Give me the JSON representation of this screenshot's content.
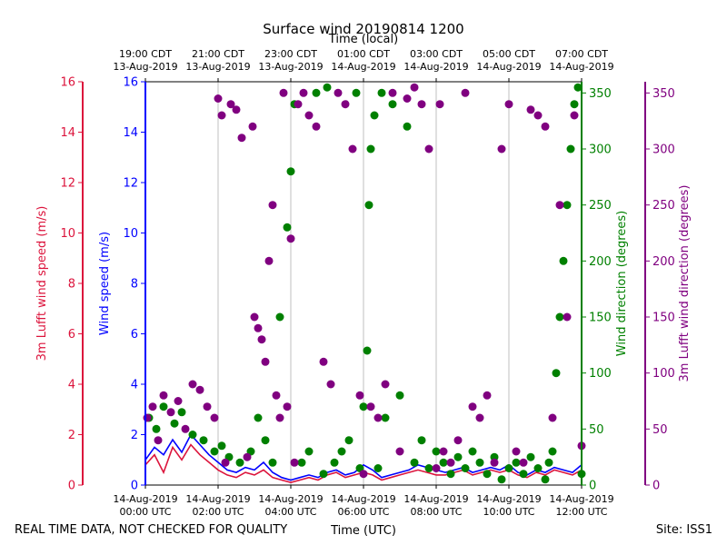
{
  "chart_data": {
    "type": "scatter",
    "title": "Surface wind 20190814 1200",
    "top_axis_label": "Time (local)",
    "xlabel": "Time (UTC)",
    "footer_left": "REAL TIME DATA, NOT CHECKED FOR QUALITY",
    "footer_right": "Site: ISS1",
    "x_range_hours_utc": [
      0,
      12
    ],
    "bottom_ticks": [
      {
        "h": 0,
        "line1": "14-Aug-2019",
        "line2": "00:00 UTC"
      },
      {
        "h": 2,
        "line1": "14-Aug-2019",
        "line2": "02:00 UTC"
      },
      {
        "h": 4,
        "line1": "14-Aug-2019",
        "line2": "04:00 UTC"
      },
      {
        "h": 6,
        "line1": "14-Aug-2019",
        "line2": "06:00 UTC"
      },
      {
        "h": 8,
        "line1": "14-Aug-2019",
        "line2": "08:00 UTC"
      },
      {
        "h": 10,
        "line1": "14-Aug-2019",
        "line2": "10:00 UTC"
      },
      {
        "h": 12,
        "line1": "14-Aug-2019",
        "line2": "12:00 UTC"
      }
    ],
    "top_ticks": [
      {
        "h": 0,
        "line1": "19:00 CDT",
        "line2": "13-Aug-2019"
      },
      {
        "h": 2,
        "line1": "21:00 CDT",
        "line2": "13-Aug-2019"
      },
      {
        "h": 4,
        "line1": "23:00 CDT",
        "line2": "13-Aug-2019"
      },
      {
        "h": 6,
        "line1": "01:00 CDT",
        "line2": "14-Aug-2019"
      },
      {
        "h": 8,
        "line1": "03:00 CDT",
        "line2": "14-Aug-2019"
      },
      {
        "h": 10,
        "line1": "05:00 CDT",
        "line2": "14-Aug-2019"
      },
      {
        "h": 12,
        "line1": "07:00 CDT",
        "line2": "14-Aug-2019"
      }
    ],
    "axes": [
      {
        "name": "lufft-speed",
        "label": "3m Lufft wind speed (m/s)",
        "color": "#dc143c",
        "range": [
          0,
          16
        ],
        "ticks": [
          0,
          2,
          4,
          6,
          8,
          10,
          12,
          14,
          16
        ]
      },
      {
        "name": "wind-speed",
        "label": "Wind speed (m/s)",
        "color": "#0000ff",
        "range": [
          0,
          16
        ],
        "ticks": [
          0,
          2,
          4,
          6,
          8,
          10,
          12,
          14,
          16
        ]
      },
      {
        "name": "wind-direction",
        "label": "Wind direction (degrees)",
        "color": "#008000",
        "range": [
          0,
          360
        ],
        "ticks": [
          0,
          50,
          100,
          150,
          200,
          250,
          300,
          350
        ]
      },
      {
        "name": "lufft-direction",
        "label": "3m Lufft wind direction (degrees)",
        "color": "#800080",
        "range": [
          0,
          360
        ],
        "ticks": [
          0,
          50,
          100,
          150,
          200,
          250,
          300,
          350
        ]
      }
    ],
    "series": [
      {
        "name": "Wind speed",
        "kind": "line",
        "axis": "wind-speed",
        "color": "#0000ff",
        "x": [
          0,
          0.25,
          0.5,
          0.75,
          1,
          1.25,
          1.5,
          1.75,
          2,
          2.25,
          2.5,
          2.75,
          3,
          3.25,
          3.5,
          3.75,
          4,
          4.25,
          4.5,
          4.75,
          5,
          5.25,
          5.5,
          5.75,
          6,
          6.25,
          6.5,
          6.75,
          7,
          7.25,
          7.5,
          7.75,
          8,
          8.25,
          8.5,
          8.75,
          9,
          9.25,
          9.5,
          9.75,
          10,
          10.25,
          10.5,
          10.75,
          11,
          11.25,
          11.5,
          11.75,
          12
        ],
        "y": [
          1.0,
          1.5,
          1.2,
          1.8,
          1.3,
          2.0,
          1.6,
          1.2,
          0.9,
          0.6,
          0.5,
          0.7,
          0.6,
          0.9,
          0.5,
          0.3,
          0.2,
          0.3,
          0.4,
          0.3,
          0.5,
          0.6,
          0.4,
          0.5,
          0.8,
          0.6,
          0.3,
          0.4,
          0.5,
          0.6,
          0.8,
          0.7,
          0.6,
          0.5,
          0.6,
          0.7,
          0.5,
          0.6,
          0.7,
          0.6,
          0.8,
          0.5,
          0.4,
          0.6,
          0.5,
          0.7,
          0.6,
          0.5,
          0.8
        ]
      },
      {
        "name": "3m Lufft wind speed",
        "kind": "line",
        "axis": "lufft-speed",
        "color": "#dc143c",
        "x": [
          0,
          0.25,
          0.5,
          0.75,
          1,
          1.25,
          1.5,
          1.75,
          2,
          2.25,
          2.5,
          2.75,
          3,
          3.25,
          3.5,
          3.75,
          4,
          4.25,
          4.5,
          4.75,
          5,
          5.25,
          5.5,
          5.75,
          6,
          6.25,
          6.5,
          6.75,
          7,
          7.25,
          7.5,
          7.75,
          8,
          8.25,
          8.5,
          8.75,
          9,
          9.25,
          9.5,
          9.75,
          10,
          10.25,
          10.5,
          10.75,
          11,
          11.25,
          11.5,
          11.75,
          12
        ],
        "y": [
          0.8,
          1.2,
          0.5,
          1.5,
          1.0,
          1.6,
          1.2,
          0.9,
          0.6,
          0.4,
          0.3,
          0.5,
          0.4,
          0.6,
          0.3,
          0.2,
          0.1,
          0.2,
          0.3,
          0.2,
          0.4,
          0.5,
          0.3,
          0.4,
          0.5,
          0.4,
          0.2,
          0.3,
          0.4,
          0.5,
          0.6,
          0.5,
          0.4,
          0.4,
          0.5,
          0.6,
          0.4,
          0.5,
          0.6,
          0.5,
          0.6,
          0.4,
          0.3,
          0.5,
          0.4,
          0.6,
          0.5,
          0.4,
          0.6
        ]
      },
      {
        "name": "Wind direction",
        "kind": "scatter",
        "axis": "wind-direction",
        "color": "#008000",
        "x": [
          0.1,
          0.3,
          0.5,
          0.8,
          1.0,
          1.3,
          1.6,
          1.9,
          2.1,
          2.3,
          2.6,
          2.9,
          3.1,
          3.3,
          3.5,
          3.7,
          3.9,
          4.0,
          4.1,
          4.3,
          4.5,
          4.7,
          4.9,
          5.0,
          5.2,
          5.4,
          5.6,
          5.8,
          5.9,
          6.0,
          6.1,
          6.15,
          6.2,
          6.3,
          6.4,
          6.5,
          6.6,
          6.8,
          7.0,
          7.2,
          7.4,
          7.6,
          7.8,
          8.0,
          8.2,
          8.4,
          8.6,
          8.8,
          9.0,
          9.2,
          9.4,
          9.6,
          9.8,
          10.0,
          10.2,
          10.4,
          10.6,
          10.8,
          11.0,
          11.1,
          11.2,
          11.3,
          11.4,
          11.5,
          11.6,
          11.7,
          11.8,
          11.9,
          12.0
        ],
        "y": [
          60,
          50,
          70,
          55,
          65,
          45,
          40,
          30,
          35,
          25,
          20,
          30,
          60,
          40,
          20,
          150,
          230,
          280,
          340,
          20,
          30,
          350,
          10,
          355,
          20,
          30,
          40,
          350,
          15,
          70,
          120,
          250,
          300,
          330,
          15,
          350,
          60,
          340,
          80,
          320,
          20,
          40,
          15,
          30,
          20,
          10,
          25,
          15,
          30,
          20,
          10,
          25,
          5,
          15,
          20,
          10,
          25,
          15,
          5,
          20,
          30,
          100,
          150,
          200,
          250,
          300,
          340,
          355,
          10
        ]
      },
      {
        "name": "3m Lufft wind direction",
        "kind": "scatter",
        "axis": "lufft-direction",
        "color": "#800080",
        "x": [
          0.05,
          0.2,
          0.35,
          0.5,
          0.7,
          0.9,
          1.1,
          1.3,
          1.5,
          1.7,
          1.9,
          2.0,
          2.1,
          2.2,
          2.35,
          2.5,
          2.65,
          2.8,
          2.95,
          3.0,
          3.1,
          3.2,
          3.3,
          3.4,
          3.5,
          3.6,
          3.7,
          3.8,
          3.9,
          4.0,
          4.1,
          4.2,
          4.35,
          4.5,
          4.7,
          4.9,
          5.1,
          5.3,
          5.5,
          5.7,
          5.9,
          6.0,
          6.2,
          6.4,
          6.6,
          6.8,
          7.0,
          7.2,
          7.4,
          7.6,
          7.8,
          8.0,
          8.1,
          8.2,
          8.4,
          8.6,
          8.8,
          9.0,
          9.2,
          9.4,
          9.6,
          9.8,
          10.0,
          10.2,
          10.4,
          10.6,
          10.8,
          11.0,
          11.2,
          11.4,
          11.6,
          11.8,
          12.0
        ],
        "y": [
          60,
          70,
          40,
          80,
          65,
          75,
          50,
          90,
          85,
          70,
          60,
          345,
          330,
          20,
          340,
          335,
          310,
          25,
          320,
          150,
          140,
          130,
          110,
          200,
          250,
          80,
          60,
          350,
          70,
          220,
          20,
          340,
          350,
          330,
          320,
          110,
          90,
          350,
          340,
          300,
          80,
          10,
          70,
          60,
          90,
          350,
          30,
          345,
          355,
          340,
          300,
          15,
          340,
          30,
          20,
          40,
          350,
          70,
          60,
          80,
          20,
          300,
          340,
          30,
          20,
          335,
          330,
          320,
          60,
          250,
          150,
          330,
          35
        ]
      }
    ]
  }
}
